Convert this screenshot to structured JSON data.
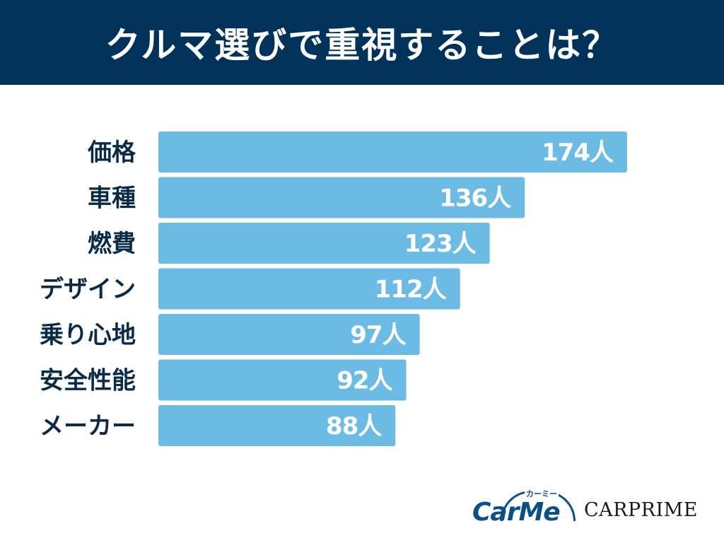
{
  "title": "クルマ選びで重視することは？",
  "colors": {
    "header_bg": "#00325a",
    "bar": "#6bbbe4",
    "label": "#0a2a4a",
    "value_text": "#ffffff"
  },
  "chart_data": {
    "type": "bar",
    "orientation": "horizontal",
    "categories": [
      "価格",
      "車種",
      "燃費",
      "デザイン",
      "乗り心地",
      "安全性能",
      "メーカー"
    ],
    "values": [
      174,
      136,
      123,
      112,
      97,
      92,
      88
    ],
    "value_labels": [
      "174人",
      "136人",
      "123人",
      "112人",
      "97人",
      "92人",
      "88人"
    ],
    "unit": "人",
    "xlim": [
      0,
      174
    ],
    "grid": false,
    "legend": "none"
  },
  "logos": {
    "carme_text": "CarMe",
    "carme_kana": "カーミー",
    "carprime_text": "CARPRIME"
  }
}
